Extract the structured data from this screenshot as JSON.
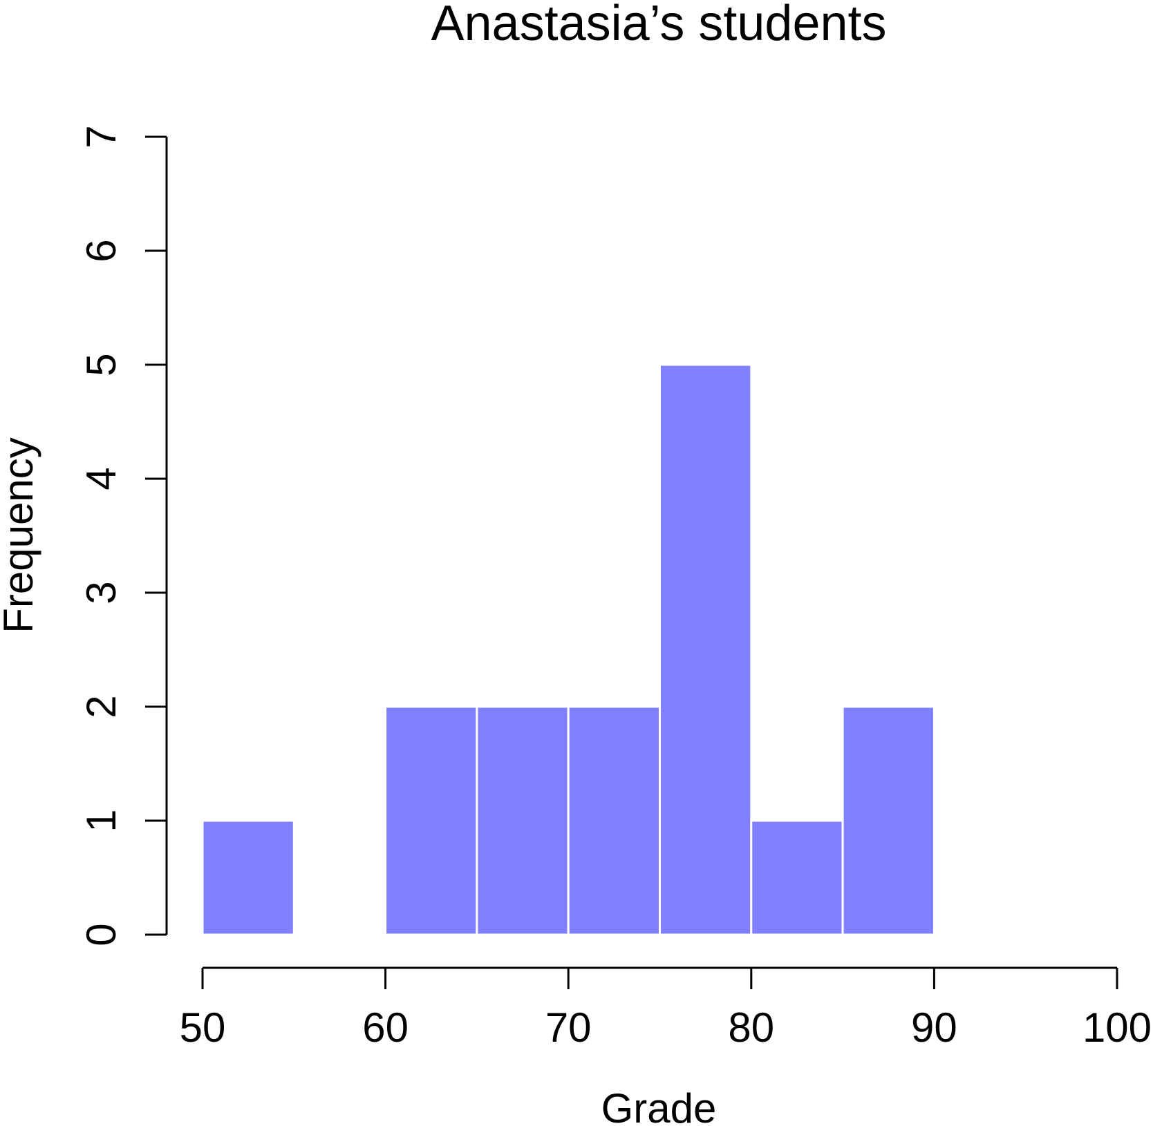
{
  "chart_data": {
    "type": "bar",
    "title": "Anastasia’s students",
    "xlabel": "Grade",
    "ylabel": "Frequency",
    "bins": [
      {
        "from": 50,
        "to": 55,
        "count": 1
      },
      {
        "from": 55,
        "to": 60,
        "count": 0
      },
      {
        "from": 60,
        "to": 65,
        "count": 2
      },
      {
        "from": 65,
        "to": 70,
        "count": 2
      },
      {
        "from": 70,
        "to": 75,
        "count": 2
      },
      {
        "from": 75,
        "to": 80,
        "count": 5
      },
      {
        "from": 80,
        "to": 85,
        "count": 1
      },
      {
        "from": 85,
        "to": 90,
        "count": 2
      }
    ],
    "xlim": [
      50,
      100
    ],
    "ylim": [
      0,
      7
    ],
    "x_ticks": [
      "50",
      "60",
      "70",
      "80",
      "90",
      "100"
    ],
    "y_ticks": [
      "0",
      "1",
      "2",
      "3",
      "4",
      "5",
      "6",
      "7"
    ],
    "bar_color": "#8080ff",
    "bar_border_color": "#ffffff",
    "grid": false
  }
}
